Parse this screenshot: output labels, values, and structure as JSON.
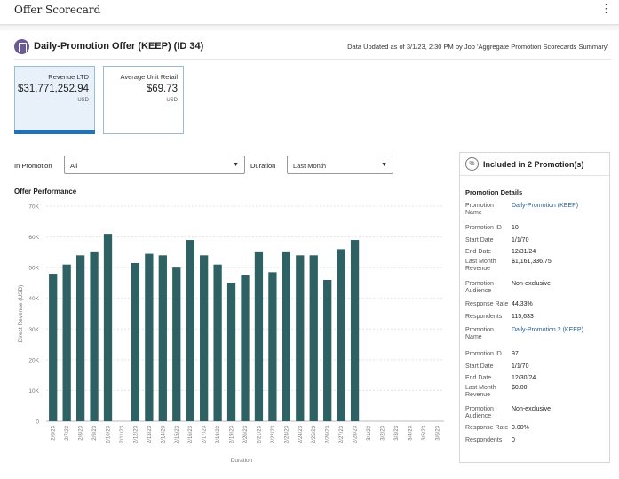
{
  "app": {
    "title": "Offer Scorecard",
    "menu_glyph": "⋮"
  },
  "offer": {
    "title": "Daily-Promotion Offer (KEEP) (ID 34)",
    "updated": "Data Updated as of 3/1/23, 2:30 PM by Job 'Aggregate Promotion Scorecards Summary'"
  },
  "cards": [
    {
      "label": "Revenue LTD",
      "value": "$31,771,252.94",
      "unit": "USD",
      "selected": true
    },
    {
      "label": "Average Unit Retail",
      "value": "$69.73",
      "unit": "USD",
      "selected": false
    }
  ],
  "filters": {
    "in_promotion_label": "In Promotion",
    "in_promotion_value": "All",
    "duration_label": "Duration",
    "duration_value": "Last Month"
  },
  "icons": {
    "caret": "▼",
    "offer": "offer-icon",
    "promotion": "%"
  },
  "chart_title": "Offer Performance",
  "chart_data": {
    "type": "bar",
    "title": "Offer Performance",
    "xlabel": "Duration",
    "ylabel": "Direct Revenue (USD)",
    "ylim": [
      0,
      70000
    ],
    "yticks": [
      "0",
      "10K",
      "20K",
      "30K",
      "40K",
      "50K",
      "60K",
      "70K"
    ],
    "ytick_values": [
      0,
      10000,
      20000,
      30000,
      40000,
      50000,
      60000,
      70000
    ],
    "bar_color": "#2e6163",
    "categories": [
      "2/6/23",
      "2/7/23",
      "2/8/23",
      "2/9/23",
      "2/10/23",
      "2/11/23",
      "2/12/23",
      "2/13/23",
      "2/14/23",
      "2/15/23",
      "2/16/23",
      "2/17/23",
      "2/18/23",
      "2/19/23",
      "2/20/23",
      "2/21/23",
      "2/22/23",
      "2/23/23",
      "2/24/23",
      "2/25/23",
      "2/26/23",
      "2/27/23",
      "2/28/23",
      "3/1/23",
      "3/2/23",
      "3/3/23",
      "3/4/23",
      "3/5/23",
      "3/6/23"
    ],
    "values": [
      48000,
      51000,
      54000,
      55000,
      61000,
      null,
      51500,
      54500,
      54000,
      50000,
      59000,
      54000,
      51000,
      45000,
      47500,
      55000,
      48500,
      55000,
      54000,
      54000,
      46000,
      56000,
      59000,
      null,
      null,
      null,
      null,
      null,
      null
    ]
  },
  "side": {
    "title": "Included in 2 Promotion(s)",
    "details_title": "Promotion Details",
    "promotions": [
      {
        "fields": [
          {
            "k": "Promotion Name",
            "v": "Daily-Promotion (KEEP)",
            "link": true
          },
          {
            "k": "Promotion ID",
            "v": "10"
          },
          {
            "k": "Start Date",
            "v": "1/1/70"
          },
          {
            "k": "End Date",
            "v": "12/31/24"
          },
          {
            "k": "Last Month Revenue",
            "v": "$1,161,336.75"
          },
          {
            "k": "Promotion Audience",
            "v": "Non-exclusive"
          },
          {
            "k": "Response Rate",
            "v": "44.33%"
          },
          {
            "k": "Respondents",
            "v": "115,633"
          }
        ]
      },
      {
        "fields": [
          {
            "k": "Promotion Name",
            "v": "Daily-Promotion 2 (KEEP)",
            "link": true
          },
          {
            "k": "Promotion ID",
            "v": "97"
          },
          {
            "k": "Start Date",
            "v": "1/1/70"
          },
          {
            "k": "End Date",
            "v": "12/30/24"
          },
          {
            "k": "Last Month Revenue",
            "v": "$0.00"
          },
          {
            "k": "Promotion Audience",
            "v": "Non-exclusive"
          },
          {
            "k": "Response Rate",
            "v": "0.00%"
          },
          {
            "k": "Respondents",
            "v": "0"
          }
        ]
      }
    ]
  }
}
